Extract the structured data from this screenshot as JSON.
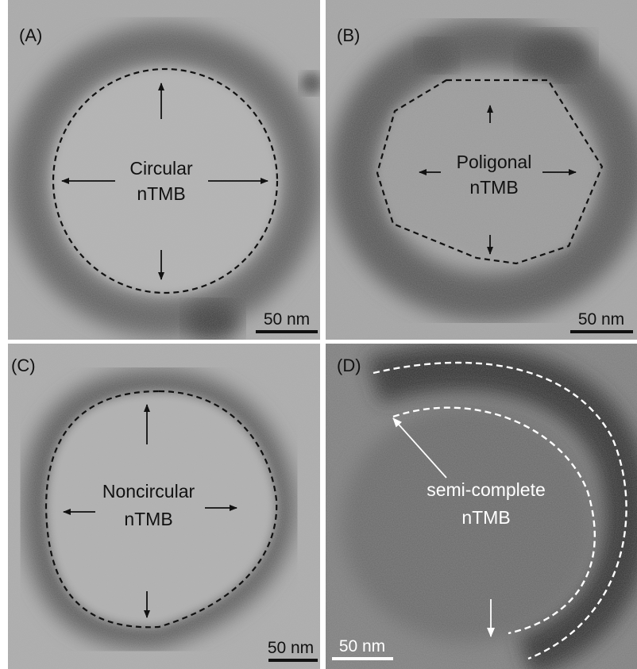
{
  "panels": [
    {
      "label": "(A)",
      "caption": [
        "Circular",
        "nTMB"
      ],
      "scale": "50 nm"
    },
    {
      "label": "(B)",
      "caption": [
        "Poligonal",
        "nTMB"
      ],
      "scale": "50 nm"
    },
    {
      "label": "(C)",
      "caption": [
        "Noncircular",
        "nTMB"
      ],
      "scale": "50 nm"
    },
    {
      "label": "(D)",
      "caption": [
        "semi-complete",
        "nTMB"
      ],
      "scale": "50 nm"
    }
  ]
}
